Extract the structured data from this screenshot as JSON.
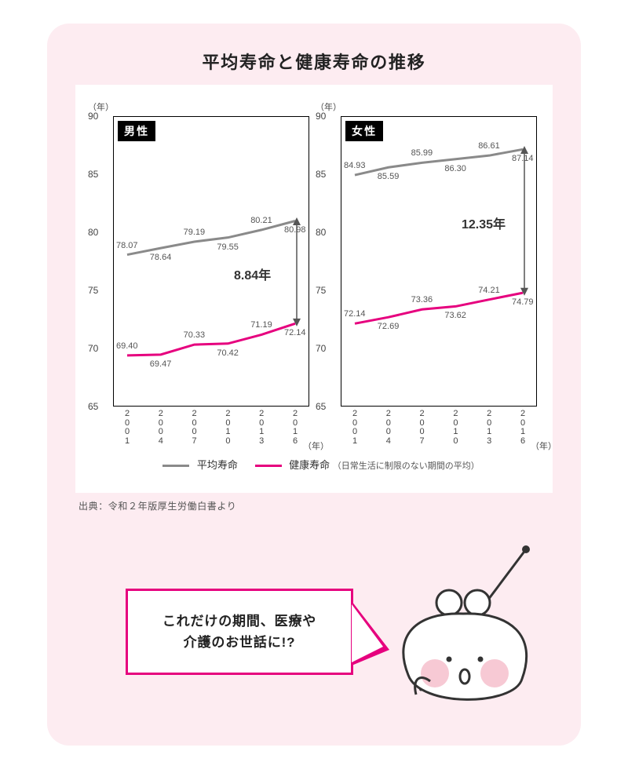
{
  "title": "平均寿命と健康寿命の推移",
  "source": "出典：令和２年版厚生労働白書より",
  "axis": {
    "y_unit": "（年）",
    "x_unit": "（年）",
    "ymin": 65,
    "ymax": 90,
    "ytick_step": 5,
    "yticks": [
      65,
      70,
      75,
      80,
      85,
      90
    ],
    "xticks": [
      "2001",
      "2004",
      "2007",
      "2010",
      "2013",
      "2016"
    ]
  },
  "colors": {
    "life": "#8a8a8a",
    "healthy": "#e6007e",
    "frame": "#000000",
    "text": "#444444",
    "panel": "#fdecf1",
    "card": "#ffffff",
    "accent": "#e6007e"
  },
  "line_width": 3,
  "plots": {
    "male": {
      "label": "男性",
      "life": [
        78.07,
        78.64,
        79.19,
        79.55,
        80.21,
        80.98
      ],
      "healthy": [
        69.4,
        69.47,
        70.33,
        70.42,
        71.19,
        72.14
      ],
      "gap_label": "8.84年"
    },
    "female": {
      "label": "女性",
      "life": [
        84.93,
        85.59,
        85.99,
        86.3,
        86.61,
        87.14
      ],
      "healthy": [
        72.14,
        72.69,
        73.36,
        73.62,
        74.21,
        74.79
      ],
      "gap_label": "12.35年"
    }
  },
  "legend": {
    "life": "平均寿命",
    "healthy": "健康寿命",
    "healthy_note": "（日常生活に制限のない期間の平均）"
  },
  "speech": "これだけの期間、医療や\n介護のお世話に!?"
}
